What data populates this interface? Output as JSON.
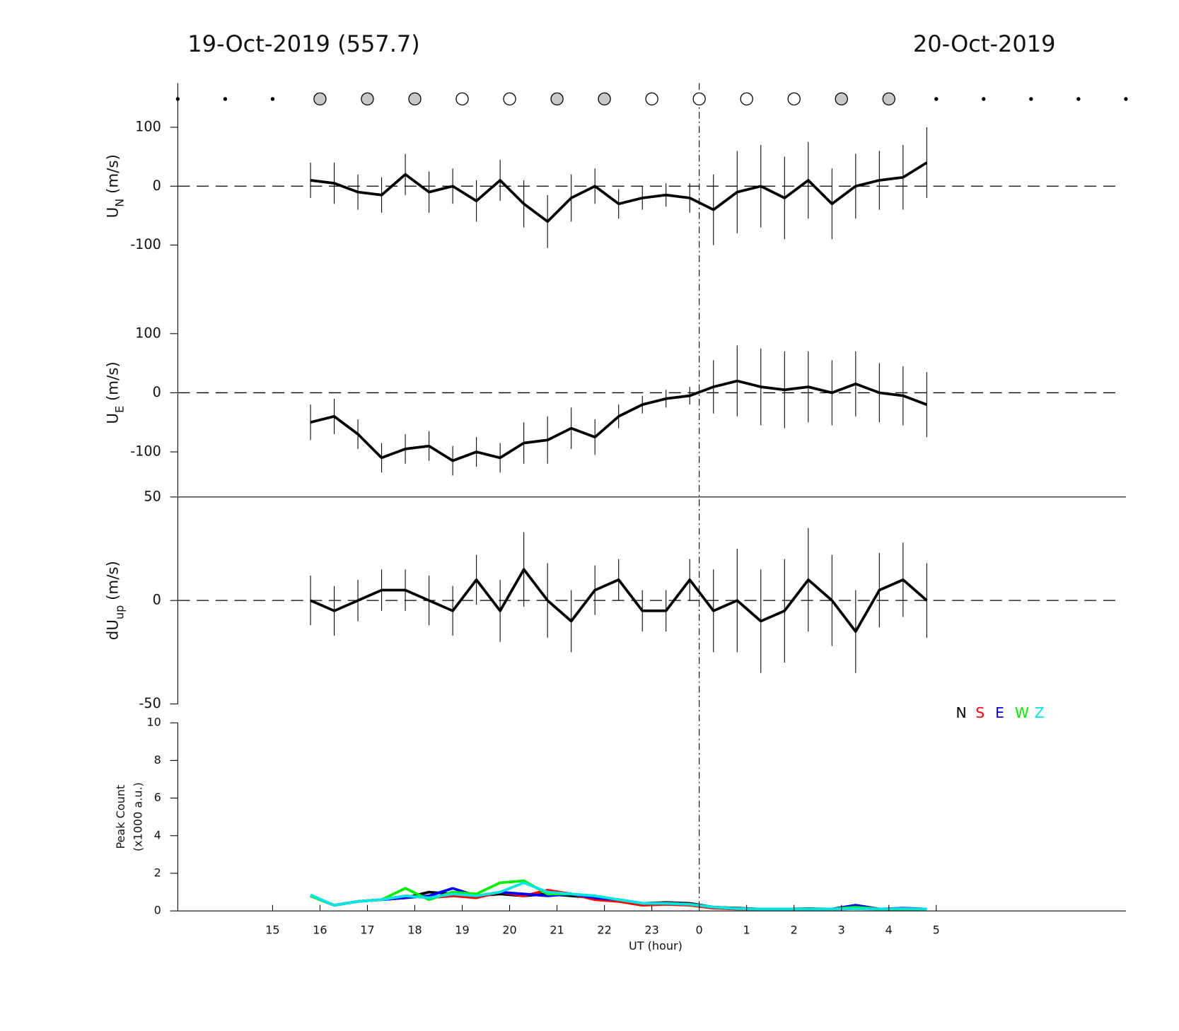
{
  "header": {
    "left": "19-Oct-2019 (557.7)",
    "right": "20-Oct-2019"
  },
  "day_boundary_hour": 24,
  "markers": {
    "x": [
      13,
      14,
      15,
      16,
      17,
      18,
      19,
      20,
      21,
      22,
      23,
      24,
      25,
      26,
      27,
      28,
      29,
      30,
      31,
      32,
      33
    ],
    "kind": [
      "dot",
      "dot",
      "dot",
      "gray",
      "gray",
      "gray",
      "open",
      "open",
      "gray",
      "gray",
      "open",
      "open",
      "open",
      "open",
      "gray",
      "gray",
      "dot",
      "dot",
      "dot",
      "dot",
      "dot"
    ]
  },
  "chart_data": [
    {
      "type": "errorbar",
      "ylabel": {
        "text": "U",
        "sub": "N",
        "unit": " (m/s)"
      },
      "color": "#000000",
      "zero_line": true,
      "xlim": [
        13,
        33
      ],
      "ylim": [
        -175,
        175
      ],
      "yticks": [
        -100,
        0,
        100
      ],
      "x": [
        15.8,
        16.3,
        16.8,
        17.3,
        17.8,
        18.3,
        18.8,
        19.3,
        19.8,
        20.3,
        20.8,
        21.3,
        21.8,
        22.3,
        22.8,
        23.3,
        23.8,
        24.3,
        24.8,
        25.3,
        25.8,
        26.3,
        26.8,
        27.3,
        27.8,
        28.3,
        28.8
      ],
      "values": [
        10,
        5,
        -10,
        -15,
        20,
        -10,
        0,
        -25,
        10,
        -30,
        -60,
        -20,
        0,
        -30,
        -20,
        -15,
        -20,
        -40,
        -10,
        0,
        -20,
        10,
        -30,
        0,
        10,
        15,
        40
      ],
      "errors": [
        30,
        35,
        30,
        30,
        35,
        35,
        30,
        35,
        35,
        40,
        45,
        40,
        30,
        25,
        20,
        20,
        25,
        60,
        70,
        70,
        70,
        65,
        60,
        55,
        50,
        55,
        60
      ]
    },
    {
      "type": "errorbar",
      "ylabel": {
        "text": "U",
        "sub": "E",
        "unit": " (m/s)"
      },
      "color": "#000000",
      "zero_line": true,
      "xlim": [
        13,
        33
      ],
      "ylim": [
        -175,
        175
      ],
      "yticks": [
        -100,
        0,
        100
      ],
      "x": [
        15.8,
        16.3,
        16.8,
        17.3,
        17.8,
        18.3,
        18.8,
        19.3,
        19.8,
        20.3,
        20.8,
        21.3,
        21.8,
        22.3,
        22.8,
        23.3,
        23.8,
        24.3,
        24.8,
        25.3,
        25.8,
        26.3,
        26.8,
        27.3,
        27.8,
        28.3,
        28.8
      ],
      "values": [
        -50,
        -40,
        -70,
        -110,
        -95,
        -90,
        -115,
        -100,
        -110,
        -85,
        -80,
        -60,
        -75,
        -40,
        -20,
        -10,
        -5,
        10,
        20,
        10,
        5,
        10,
        0,
        15,
        0,
        -5,
        -20
      ],
      "errors": [
        30,
        30,
        25,
        25,
        25,
        25,
        25,
        25,
        25,
        35,
        40,
        35,
        30,
        20,
        15,
        15,
        15,
        45,
        60,
        65,
        65,
        60,
        55,
        55,
        50,
        50,
        55
      ]
    },
    {
      "type": "errorbar",
      "ylabel": {
        "text": "dU",
        "sub": "up",
        "unit": " (m/s)"
      },
      "color": "#000000",
      "zero_line": true,
      "xlim": [
        13,
        33
      ],
      "ylim": [
        -50,
        50
      ],
      "yticks": [
        -50,
        0,
        50
      ],
      "x": [
        15.8,
        16.3,
        16.8,
        17.3,
        17.8,
        18.3,
        18.8,
        19.3,
        19.8,
        20.3,
        20.8,
        21.3,
        21.8,
        22.3,
        22.8,
        23.3,
        23.8,
        24.3,
        24.8,
        25.3,
        25.8,
        26.3,
        26.8,
        27.3,
        27.8,
        28.3,
        28.8
      ],
      "values": [
        0,
        -5,
        0,
        5,
        5,
        0,
        -5,
        10,
        -5,
        15,
        0,
        -10,
        5,
        10,
        -5,
        -5,
        10,
        -5,
        0,
        -10,
        -5,
        10,
        0,
        -15,
        5,
        10,
        0
      ],
      "errors": [
        12,
        12,
        10,
        10,
        10,
        12,
        12,
        12,
        15,
        18,
        18,
        15,
        12,
        10,
        10,
        10,
        10,
        20,
        25,
        25,
        25,
        25,
        22,
        20,
        18,
        18,
        18
      ]
    },
    {
      "type": "line",
      "ylabel": [
        "Peak Count",
        "(x1000 a.u.)"
      ],
      "xlabel": "UT (hour)",
      "xlim": [
        13,
        33
      ],
      "ylim": [
        0,
        10
      ],
      "yticks": [
        0,
        2,
        4,
        6,
        8,
        10
      ],
      "xticks": [
        15,
        16,
        17,
        18,
        19,
        20,
        21,
        22,
        23,
        {
          "value": 24,
          "label": "0"
        },
        {
          "value": 25,
          "label": "1"
        },
        {
          "value": 26,
          "label": "2"
        },
        {
          "value": 27,
          "label": "3"
        },
        {
          "value": 28,
          "label": "4"
        },
        {
          "value": 29,
          "label": "5"
        }
      ],
      "x": [
        15.8,
        16.3,
        16.8,
        17.3,
        17.8,
        18.3,
        18.8,
        19.3,
        19.8,
        20.3,
        20.8,
        21.3,
        21.8,
        22.3,
        22.8,
        23.3,
        23.8,
        24.3,
        24.8,
        25.3,
        25.8,
        26.3,
        26.8,
        27.3,
        27.8,
        28.3,
        28.8
      ],
      "series": [
        {
          "name": "N",
          "color": "#000000",
          "values": [
            0.8,
            0.3,
            0.5,
            0.6,
            0.7,
            1.0,
            0.9,
            0.8,
            0.9,
            0.8,
            0.9,
            0.8,
            0.7,
            0.6,
            0.4,
            0.45,
            0.4,
            0.2,
            0.15,
            0.1,
            0.1,
            0.12,
            0.1,
            0.15,
            0.1,
            0.1,
            0.1
          ]
        },
        {
          "name": "S",
          "color": "#ff0000",
          "values": [
            0.8,
            0.3,
            0.5,
            0.6,
            0.8,
            0.7,
            0.8,
            0.7,
            1.0,
            0.8,
            1.1,
            0.9,
            0.6,
            0.5,
            0.3,
            0.35,
            0.3,
            0.15,
            0.1,
            0.1,
            0.1,
            0.1,
            0.1,
            0.12,
            0.1,
            0.1,
            0.1
          ]
        },
        {
          "name": "E",
          "color": "#0000ff",
          "values": [
            0.8,
            0.3,
            0.5,
            0.6,
            0.7,
            0.8,
            1.2,
            0.8,
            1.0,
            0.9,
            0.8,
            0.9,
            0.7,
            0.6,
            0.4,
            0.4,
            0.35,
            0.2,
            0.12,
            0.1,
            0.1,
            0.1,
            0.1,
            0.3,
            0.1,
            0.15,
            0.1
          ]
        },
        {
          "name": "W",
          "color": "#00ee00",
          "values": [
            0.8,
            0.3,
            0.5,
            0.6,
            1.2,
            0.6,
            1.0,
            0.9,
            1.5,
            1.6,
            0.9,
            0.9,
            0.8,
            0.6,
            0.4,
            0.4,
            0.35,
            0.2,
            0.12,
            0.1,
            0.1,
            0.1,
            0.1,
            0.2,
            0.1,
            0.1,
            0.1
          ]
        },
        {
          "name": "Z",
          "color": "#00e5e5",
          "values": [
            0.85,
            0.3,
            0.5,
            0.6,
            0.8,
            0.7,
            0.9,
            0.8,
            1.0,
            1.5,
            1.0,
            0.9,
            0.8,
            0.6,
            0.4,
            0.4,
            0.35,
            0.2,
            0.12,
            0.1,
            0.1,
            0.1,
            0.1,
            0.12,
            0.1,
            0.12,
            0.1
          ]
        }
      ]
    }
  ]
}
